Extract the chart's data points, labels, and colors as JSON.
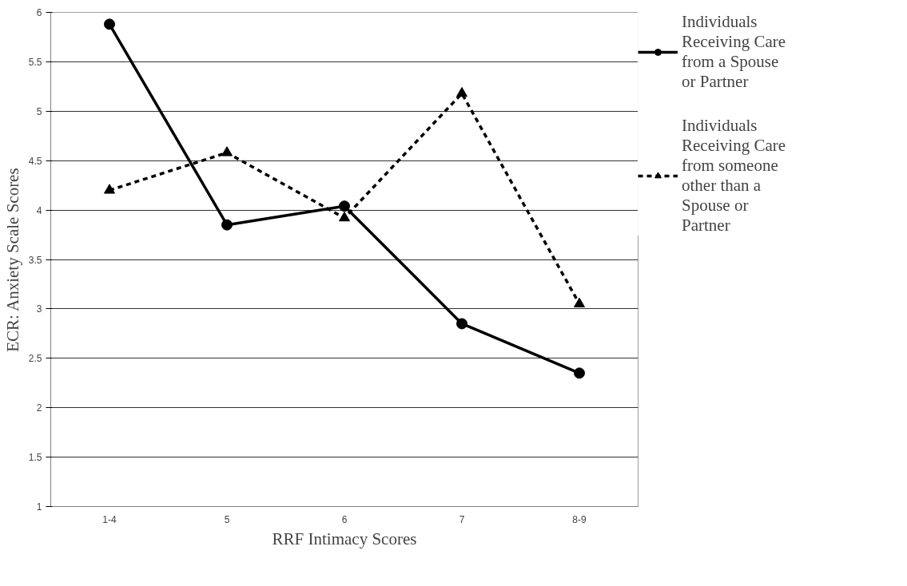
{
  "chart_data": {
    "type": "line",
    "xlabel": "RRF Intimacy Scores",
    "ylabel": "ECR: Anxiety Scale Scores",
    "categories": [
      "1-4",
      "5",
      "6",
      "7",
      "8-9"
    ],
    "series": [
      {
        "name": "Individuals Receiving Care from a Spouse or Partner",
        "color": "#000000",
        "marker": "circle",
        "line_style": "solid",
        "values": [
          5.88,
          3.85,
          4.04,
          2.85,
          2.35
        ]
      },
      {
        "name": "Individuals Receiving Care from someone other than a Spouse or Partner",
        "color": "#000000",
        "marker": "triangle",
        "line_style": "dashed",
        "values": [
          4.2,
          4.58,
          3.92,
          5.18,
          3.05
        ]
      }
    ],
    "ylim": [
      1,
      6
    ],
    "yticks": [
      1,
      1.5,
      2,
      2.5,
      3,
      3.5,
      4,
      4.5,
      5,
      5.5,
      6
    ],
    "grid": "y",
    "legend": "right"
  }
}
